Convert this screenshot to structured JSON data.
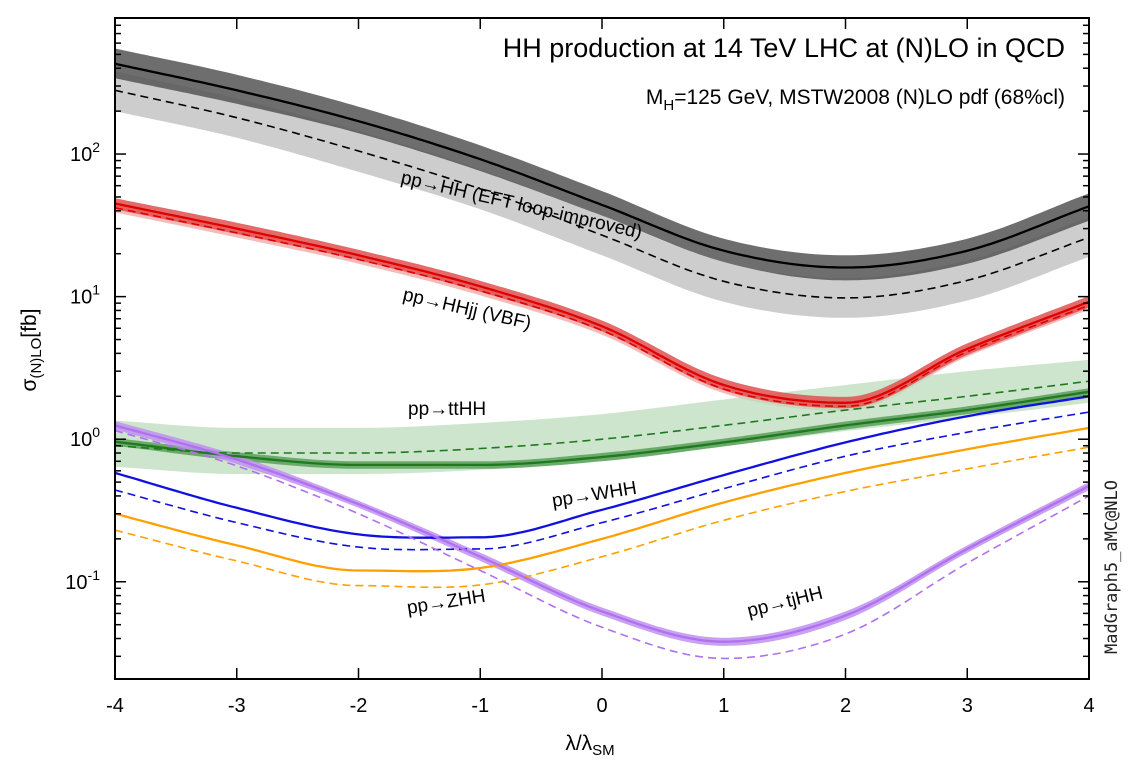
{
  "chart_data": {
    "type": "line",
    "title": "HH production at 14 TeV LHC at (N)LO in QCD",
    "subtitle": {
      "main": "M",
      "sub": "H",
      "rest": "=125 GeV, MSTW2008 (N)LO pdf (68%cl)"
    },
    "xlabel": {
      "main": "λ/λ",
      "sub": "SM"
    },
    "ylabel": {
      "main": "σ",
      "sub": "(N)LO",
      "rest": "[fb]"
    },
    "watermark": "MadGraph5_aMC@NLO",
    "x_ticks": [
      "-4",
      "-3",
      "-2",
      "-1",
      "0",
      "1",
      "2",
      "3",
      "4"
    ],
    "y_ticks": [
      {
        "base": "10",
        "exp": "-1",
        "value": 0.1
      },
      {
        "base": "10",
        "exp": "0",
        "value": 1
      },
      {
        "base": "10",
        "exp": "1",
        "value": 10
      },
      {
        "base": "10",
        "exp": "2",
        "value": 100
      }
    ],
    "xlim": [
      -4,
      4
    ],
    "ylim": [
      0.0208,
      900
    ],
    "y_scale": "log",
    "x": [
      -4,
      -3,
      -2,
      -1,
      0,
      1,
      2,
      3,
      4
    ],
    "series": [
      {
        "key": "hh",
        "label": "pp→HH (EFT loop-improved)",
        "color": "#000000",
        "band_dark": "#555555",
        "band_light": "#c8c8c8",
        "nlo": [
          430,
          280,
          170,
          92,
          44,
          21,
          16,
          21,
          43
        ],
        "nlo_band": [
          [
            340,
            550
          ],
          [
            225,
            360
          ],
          [
            140,
            215
          ],
          [
            76,
            115
          ],
          [
            37,
            55
          ],
          [
            17.5,
            25.5
          ],
          [
            13,
            19.5
          ],
          [
            17,
            25.5
          ],
          [
            34,
            53
          ]
        ],
        "lo": [
          280,
          180,
          105,
          57,
          27,
          12.8,
          9.8,
          13,
          26
        ],
        "lo_band": [
          [
            200,
            380
          ],
          [
            130,
            245
          ],
          [
            75,
            145
          ],
          [
            41,
            78
          ],
          [
            19.5,
            37
          ],
          [
            9.2,
            17.5
          ],
          [
            7.1,
            13.5
          ],
          [
            9.4,
            18
          ],
          [
            19,
            36
          ]
        ]
      },
      {
        "key": "vbf",
        "label": "pp→HHjj (VBF)",
        "color": "#e00000",
        "band_dark": "#e05050",
        "band_light": "#f4b4b4",
        "nlo": [
          45,
          30,
          19.5,
          11.8,
          6.2,
          2.4,
          1.8,
          4.3,
          9.2
        ],
        "nlo_band": [
          [
            41,
            49
          ],
          [
            27.5,
            33
          ],
          [
            18,
            21.3
          ],
          [
            10.8,
            12.9
          ],
          [
            5.7,
            6.8
          ],
          [
            2.2,
            2.65
          ],
          [
            1.65,
            1.98
          ],
          [
            3.9,
            4.7
          ],
          [
            8.4,
            10.1
          ]
        ],
        "lo": [
          42,
          28,
          18.2,
          11,
          5.8,
          2.25,
          1.7,
          4.1,
          8.7
        ],
        "lo_band": [
          [
            39,
            45
          ],
          [
            26,
            30
          ],
          [
            17,
            19.5
          ],
          [
            10.2,
            11.8
          ],
          [
            5.4,
            6.2
          ],
          [
            2.1,
            2.4
          ],
          [
            1.58,
            1.82
          ],
          [
            3.8,
            4.4
          ],
          [
            8.1,
            9.3
          ]
        ]
      },
      {
        "key": "tthh",
        "label": "pp→ttHH",
        "color": "#1f7a1f",
        "band_dark": "#5aa05a",
        "band_light": "#bcdcbc",
        "nlo": [
          0.96,
          0.76,
          0.66,
          0.66,
          0.75,
          0.95,
          1.25,
          1.6,
          2.15
        ],
        "nlo_band": [
          [
            0.9,
            1.02
          ],
          [
            0.71,
            0.81
          ],
          [
            0.62,
            0.7
          ],
          [
            0.62,
            0.7
          ],
          [
            0.7,
            0.8
          ],
          [
            0.89,
            1.01
          ],
          [
            1.17,
            1.33
          ],
          [
            1.5,
            1.7
          ],
          [
            2.02,
            2.28
          ]
        ],
        "lo": [
          0.9,
          0.8,
          0.8,
          0.86,
          1.0,
          1.25,
          1.6,
          2.0,
          2.55
        ],
        "lo_band": [
          [
            0.64,
            1.35
          ],
          [
            0.57,
            1.2
          ],
          [
            0.57,
            1.2
          ],
          [
            0.61,
            1.3
          ],
          [
            0.71,
            1.5
          ],
          [
            0.89,
            1.9
          ],
          [
            1.14,
            2.4
          ],
          [
            1.42,
            3.0
          ],
          [
            1.8,
            3.6
          ]
        ]
      },
      {
        "key": "whh",
        "label": "pp→WHH",
        "color": "#1010e0",
        "nlo": [
          0.58,
          0.33,
          0.215,
          0.205,
          0.32,
          0.56,
          0.95,
          1.45,
          2.0
        ],
        "lo": [
          0.44,
          0.26,
          0.175,
          0.17,
          0.26,
          0.45,
          0.76,
          1.12,
          1.55
        ]
      },
      {
        "key": "zhh",
        "label": "pp→ZHH",
        "color": "#ffa000",
        "nlo": [
          0.3,
          0.18,
          0.12,
          0.125,
          0.2,
          0.36,
          0.58,
          0.85,
          1.2
        ],
        "lo": [
          0.23,
          0.14,
          0.094,
          0.095,
          0.15,
          0.27,
          0.43,
          0.62,
          0.88
        ]
      },
      {
        "key": "tjhh",
        "label": "pp→tjHH",
        "color": "#b070f0",
        "band_dark": "#c090f0",
        "band_light": "#dcc0f8",
        "nlo": [
          1.25,
          0.72,
          0.35,
          0.15,
          0.062,
          0.038,
          0.058,
          0.17,
          0.47
        ],
        "nlo_band": [
          [
            1.17,
            1.34
          ],
          [
            0.67,
            0.77
          ],
          [
            0.33,
            0.37
          ],
          [
            0.14,
            0.16
          ],
          [
            0.058,
            0.066
          ],
          [
            0.0355,
            0.0405
          ],
          [
            0.054,
            0.062
          ],
          [
            0.16,
            0.18
          ],
          [
            0.44,
            0.5
          ]
        ],
        "lo": [
          1.15,
          0.65,
          0.3,
          0.12,
          0.048,
          0.029,
          0.043,
          0.135,
          0.4
        ]
      }
    ],
    "grid": false,
    "legend": "inline labels"
  }
}
